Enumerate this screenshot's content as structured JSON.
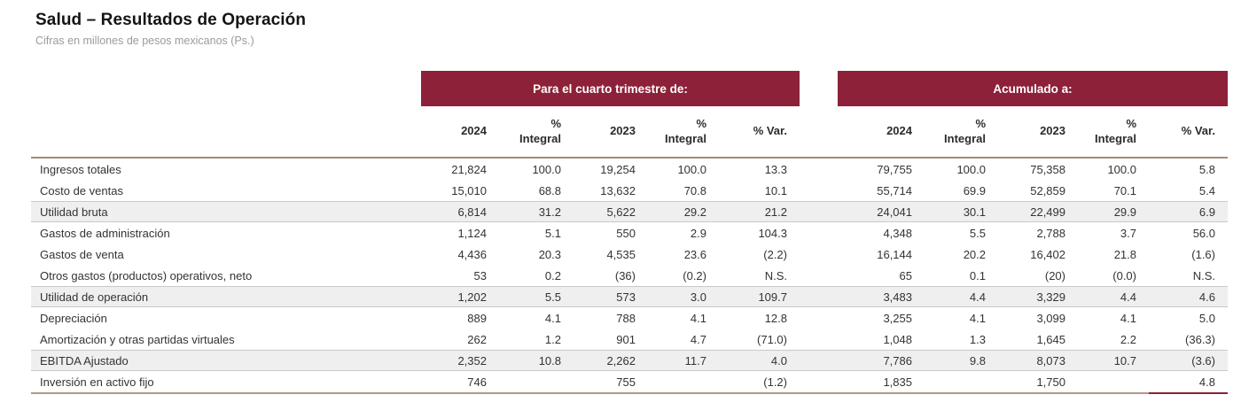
{
  "title": "Salud – Resultados de Operación",
  "subtitle": "Cifras en millones de pesos mexicanos (Ps.)",
  "colors": {
    "band_maroon": "#8C2139",
    "band_text": "#FFFFFF",
    "table_border_tan": "#B29A7F",
    "shaded_row_bg": "#EFEFEF"
  },
  "table": {
    "groups": [
      {
        "label": "Para el cuarto trimestre de:",
        "columns": [
          "2024",
          "% Integral",
          "2023",
          "% Integral",
          "% Var."
        ]
      },
      {
        "label": "Acumulado a:",
        "columns": [
          "2024",
          "% Integral",
          "2023",
          "% Integral",
          "% Var."
        ]
      }
    ],
    "rows": [
      {
        "label": "Ingresos totales",
        "shaded": false,
        "q": [
          "21,824",
          "100.0",
          "19,254",
          "100.0",
          "13.3"
        ],
        "a": [
          "79,755",
          "100.0",
          "75,358",
          "100.0",
          "5.8"
        ]
      },
      {
        "label": "Costo de ventas",
        "shaded": false,
        "q": [
          "15,010",
          "68.8",
          "13,632",
          "70.8",
          "10.1"
        ],
        "a": [
          "55,714",
          "69.9",
          "52,859",
          "70.1",
          "5.4"
        ]
      },
      {
        "label": "Utilidad bruta",
        "shaded": true,
        "q": [
          "6,814",
          "31.2",
          "5,622",
          "29.2",
          "21.2"
        ],
        "a": [
          "24,041",
          "30.1",
          "22,499",
          "29.9",
          "6.9"
        ]
      },
      {
        "label": "Gastos de administración",
        "shaded": false,
        "q": [
          "1,124",
          "5.1",
          "550",
          "2.9",
          "104.3"
        ],
        "a": [
          "4,348",
          "5.5",
          "2,788",
          "3.7",
          "56.0"
        ]
      },
      {
        "label": "Gastos de venta",
        "shaded": false,
        "q": [
          "4,436",
          "20.3",
          "4,535",
          "23.6",
          "(2.2)"
        ],
        "a": [
          "16,144",
          "20.2",
          "16,402",
          "21.8",
          "(1.6)"
        ]
      },
      {
        "label": "Otros gastos (productos) operativos, neto",
        "shaded": false,
        "q": [
          "53",
          "0.2",
          "(36)",
          "(0.2)",
          "N.S."
        ],
        "a": [
          "65",
          "0.1",
          "(20)",
          "(0.0)",
          "N.S."
        ]
      },
      {
        "label": "Utilidad de operación",
        "shaded": true,
        "q": [
          "1,202",
          "5.5",
          "573",
          "3.0",
          "109.7"
        ],
        "a": [
          "3,483",
          "4.4",
          "3,329",
          "4.4",
          "4.6"
        ]
      },
      {
        "label": "Depreciación",
        "shaded": false,
        "q": [
          "889",
          "4.1",
          "788",
          "4.1",
          "12.8"
        ],
        "a": [
          "3,255",
          "4.1",
          "3,099",
          "4.1",
          "5.0"
        ]
      },
      {
        "label": "Amortización y otras partidas virtuales",
        "shaded": false,
        "q": [
          "262",
          "1.2",
          "901",
          "4.7",
          "(71.0)"
        ],
        "a": [
          "1,048",
          "1.3",
          "1,645",
          "2.2",
          "(36.3)"
        ]
      },
      {
        "label": "EBITDA Ajustado",
        "shaded": true,
        "q": [
          "2,352",
          "10.8",
          "2,262",
          "11.7",
          "4.0"
        ],
        "a": [
          "7,786",
          "9.8",
          "8,073",
          "10.7",
          "(3.6)"
        ]
      },
      {
        "label": "Inversión en activo fijo",
        "shaded": false,
        "q": [
          "746",
          "",
          "755",
          "",
          "(1.2)"
        ],
        "a": [
          "1,835",
          "",
          "1,750",
          "",
          "4.8"
        ]
      }
    ]
  }
}
